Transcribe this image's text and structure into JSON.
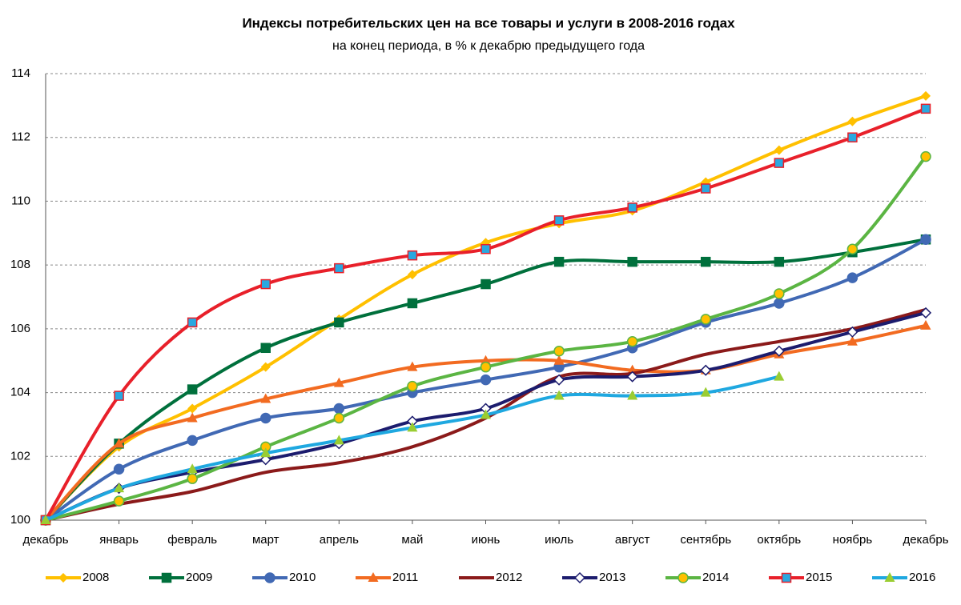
{
  "chart_data": {
    "type": "line",
    "title": "Индексы потребительских цен на все товары и услуги в 2008-2016 годах",
    "subtitle": "на конец периода, в % к декабрю предыдущего года",
    "categories": [
      "декабрь",
      "январь",
      "февраль",
      "март",
      "апрель",
      "май",
      "июнь",
      "июль",
      "август",
      "сентябрь",
      "октябрь",
      "ноябрь",
      "декабрь"
    ],
    "ylim": [
      100,
      114
    ],
    "yticks": [
      100,
      102,
      104,
      106,
      108,
      110,
      112,
      114
    ],
    "grid": true,
    "smooth": true,
    "legend": "bottom",
    "series": [
      {
        "name": "2008",
        "color": "#ffc000",
        "marker": "diamond",
        "values": [
          100,
          102.3,
          103.5,
          104.8,
          106.3,
          107.7,
          108.7,
          109.3,
          109.7,
          110.6,
          111.6,
          112.5,
          113.3
        ]
      },
      {
        "name": "2009",
        "color": "#00703c",
        "marker": "square",
        "values": [
          100,
          102.4,
          104.1,
          105.4,
          106.2,
          106.8,
          107.4,
          108.1,
          108.1,
          108.1,
          108.1,
          108.4,
          108.8
        ]
      },
      {
        "name": "2010",
        "color": "#4169b4",
        "marker": "circle",
        "values": [
          100,
          101.6,
          102.5,
          103.2,
          103.5,
          104.0,
          104.4,
          104.8,
          105.4,
          106.2,
          106.8,
          107.6,
          108.8
        ]
      },
      {
        "name": "2011",
        "color": "#f26b21",
        "marker": "triangle",
        "values": [
          100,
          102.4,
          103.2,
          103.8,
          104.3,
          104.8,
          105.0,
          105.0,
          104.7,
          104.7,
          105.2,
          105.6,
          106.1
        ]
      },
      {
        "name": "2012",
        "color": "#8b1a1a",
        "marker": "none",
        "values": [
          100,
          100.5,
          100.9,
          101.5,
          101.8,
          102.3,
          103.2,
          104.5,
          104.6,
          105.2,
          105.6,
          106.0,
          106.6
        ]
      },
      {
        "name": "2013",
        "color": "#1c1c6e",
        "marker": "diamond-open",
        "values": [
          100,
          101.0,
          101.5,
          101.9,
          102.4,
          103.1,
          103.5,
          104.4,
          104.5,
          104.7,
          105.3,
          105.9,
          106.5
        ]
      },
      {
        "name": "2014",
        "color": "#5bb543",
        "marker": "circle-gold",
        "values": [
          100,
          100.6,
          101.3,
          102.3,
          103.2,
          104.2,
          104.8,
          105.3,
          105.6,
          106.3,
          107.1,
          108.5,
          111.4
        ]
      },
      {
        "name": "2015",
        "color": "#e8202a",
        "marker": "square-blue",
        "values": [
          100,
          103.9,
          106.2,
          107.4,
          107.9,
          108.3,
          108.5,
          109.4,
          109.8,
          110.4,
          111.2,
          112.0,
          112.9
        ]
      },
      {
        "name": "2016",
        "color": "#1fa8e0",
        "marker": "triangle-green",
        "values": [
          100,
          101.0,
          101.6,
          102.1,
          102.5,
          102.9,
          103.3,
          103.9,
          103.9,
          104.0,
          104.5,
          null,
          null
        ]
      }
    ]
  }
}
